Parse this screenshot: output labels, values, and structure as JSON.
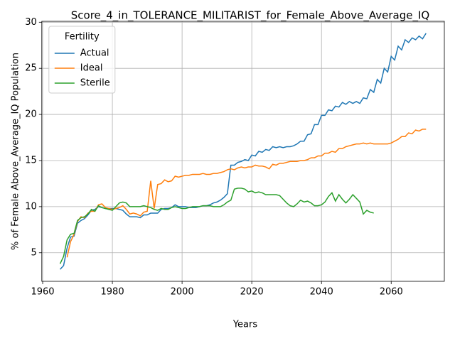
{
  "chart_data": {
    "type": "line",
    "title": "Score_4_in_TOLERANCE_MILITARIST_for_Female_Above_Average_IQ",
    "xlabel": "Years",
    "ylabel": "% of Female Above_Average_IQ Population",
    "legend_title": "Fertility",
    "legend": "upper left",
    "grid": true,
    "xlim": [
      1959.75,
      2075.25
    ],
    "xticks": [
      1960,
      1980,
      2000,
      2020,
      2040,
      2060
    ],
    "ylim": [
      1.9,
      30.1
    ],
    "yticks": [
      5,
      10,
      15,
      20,
      25,
      30
    ],
    "x": [
      1965,
      1966,
      1967,
      1968,
      1969,
      1970,
      1971,
      1972,
      1973,
      1974,
      1975,
      1976,
      1977,
      1978,
      1979,
      1980,
      1981,
      1982,
      1983,
      1984,
      1985,
      1986,
      1987,
      1988,
      1989,
      1990,
      1991,
      1992,
      1993,
      1994,
      1995,
      1996,
      1997,
      1998,
      1999,
      2000,
      2001,
      2002,
      2003,
      2004,
      2005,
      2006,
      2007,
      2008,
      2009,
      2010,
      2011,
      2012,
      2013,
      2014,
      2015,
      2016,
      2017,
      2018,
      2019,
      2020,
      2021,
      2022,
      2023,
      2024,
      2025,
      2026,
      2027,
      2028,
      2029,
      2030,
      2031,
      2032,
      2033,
      2034,
      2035,
      2036,
      2037,
      2038,
      2039,
      2040,
      2041,
      2042,
      2043,
      2044,
      2045,
      2046,
      2047,
      2048,
      2049,
      2050,
      2051,
      2052,
      2053,
      2054,
      2055,
      2056,
      2057,
      2058,
      2059,
      2060,
      2061,
      2062,
      2063,
      2064,
      2065,
      2066,
      2067,
      2068,
      2069,
      2070
    ],
    "series": [
      {
        "name": "Actual",
        "color": "#1f77b4",
        "values": [
          3.2,
          3.6,
          5.5,
          6.7,
          6.8,
          8.2,
          8.5,
          8.7,
          9.1,
          9.6,
          9.7,
          10.0,
          9.9,
          9.8,
          9.8,
          9.8,
          9.8,
          9.7,
          9.6,
          9.2,
          8.9,
          8.9,
          8.9,
          8.8,
          9.1,
          9.1,
          9.3,
          9.3,
          9.3,
          9.7,
          9.8,
          9.8,
          9.9,
          10.2,
          10.0,
          10.0,
          10.0,
          9.9,
          9.9,
          9.9,
          10.0,
          10.1,
          10.1,
          10.2,
          10.4,
          10.5,
          10.7,
          11.0,
          11.4,
          14.5,
          14.5,
          14.8,
          14.9,
          15.1,
          15.0,
          15.6,
          15.5,
          16.0,
          15.9,
          16.2,
          16.1,
          16.5,
          16.4,
          16.5,
          16.4,
          16.5,
          16.5,
          16.6,
          16.8,
          17.1,
          17.1,
          17.8,
          17.9,
          18.9,
          18.9,
          19.9,
          19.9,
          20.5,
          20.4,
          20.9,
          20.8,
          21.3,
          21.1,
          21.4,
          21.2,
          21.4,
          21.2,
          21.8,
          21.7,
          22.7,
          22.4,
          23.8,
          23.4,
          25.0,
          24.6,
          26.3,
          25.9,
          27.4,
          27.0,
          28.1,
          27.8,
          28.3,
          28.1,
          28.5,
          28.2,
          28.8
        ]
      },
      {
        "name": "Ideal",
        "color": "#ff7f0e",
        "values": [
          null,
          null,
          4.5,
          6.2,
          7.0,
          8.4,
          8.9,
          8.8,
          9.3,
          9.5,
          9.5,
          10.2,
          10.3,
          9.9,
          9.8,
          9.7,
          9.8,
          9.9,
          10.1,
          9.7,
          9.2,
          9.3,
          9.2,
          9.0,
          9.4,
          9.5,
          12.8,
          9.8,
          12.4,
          12.5,
          12.9,
          12.7,
          12.8,
          13.3,
          13.2,
          13.3,
          13.4,
          13.4,
          13.5,
          13.5,
          13.5,
          13.6,
          13.5,
          13.5,
          13.6,
          13.6,
          13.7,
          13.8,
          14.0,
          14.1,
          14.0,
          14.2,
          14.3,
          14.2,
          14.3,
          14.3,
          14.5,
          14.4,
          14.4,
          14.3,
          14.1,
          14.6,
          14.5,
          14.7,
          14.7,
          14.8,
          14.9,
          14.9,
          14.9,
          15.0,
          15.0,
          15.1,
          15.3,
          15.3,
          15.5,
          15.5,
          15.8,
          15.8,
          16.0,
          15.9,
          16.3,
          16.3,
          16.5,
          16.6,
          16.7,
          16.8,
          16.8,
          16.9,
          16.8,
          16.9,
          16.8,
          16.8,
          16.8,
          16.8,
          16.8,
          16.9,
          17.1,
          17.3,
          17.6,
          17.6,
          18.0,
          17.9,
          18.3,
          18.2,
          18.4,
          18.4
        ]
      },
      {
        "name": "Sterile",
        "color": "#2ca02c",
        "values": [
          3.8,
          4.6,
          6.4,
          7.0,
          7.1,
          8.5,
          8.8,
          8.9,
          9.2,
          9.7,
          9.5,
          10.1,
          9.9,
          9.8,
          9.7,
          9.6,
          10.0,
          10.4,
          10.5,
          10.4,
          10.0,
          10.0,
          10.0,
          10.0,
          10.1,
          10.0,
          9.9,
          9.7,
          9.6,
          9.8,
          9.7,
          9.7,
          9.9,
          10.0,
          9.9,
          9.8,
          9.8,
          9.9,
          10.0,
          10.0,
          10.0,
          10.1,
          10.1,
          10.1,
          10.0,
          10.0,
          10.0,
          10.2,
          10.5,
          10.7,
          11.9,
          12.0,
          12.0,
          11.9,
          11.6,
          11.7,
          11.5,
          11.6,
          11.5,
          11.3,
          11.3,
          11.3,
          11.3,
          11.2,
          10.8,
          10.4,
          10.1,
          10.0,
          10.3,
          10.7,
          10.5,
          10.6,
          10.4,
          10.1,
          10.1,
          10.2,
          10.5,
          11.1,
          11.5,
          10.6,
          11.3,
          10.8,
          10.4,
          10.8,
          11.3,
          10.9,
          10.5,
          9.2,
          9.6,
          9.4,
          9.3,
          null,
          null,
          null,
          null,
          null,
          null,
          null,
          null,
          null,
          null,
          null,
          null,
          null,
          null,
          null
        ]
      }
    ]
  }
}
